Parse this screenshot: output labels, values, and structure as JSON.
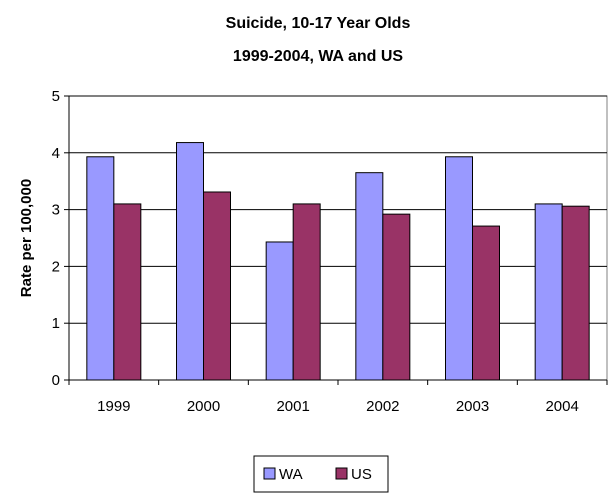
{
  "chart_data": {
    "type": "bar",
    "title_lines": [
      "Suicide, 10-17 Year Olds",
      "1999-2004, WA and US"
    ],
    "xlabel": "",
    "ylabel": "Rate per 100,000",
    "categories": [
      "1999",
      "2000",
      "2001",
      "2002",
      "2003",
      "2004"
    ],
    "series": [
      {
        "name": "WA",
        "values": [
          3.93,
          4.18,
          2.43,
          3.65,
          3.93,
          3.1
        ],
        "color": "#9999ff"
      },
      {
        "name": "US",
        "values": [
          3.1,
          3.31,
          3.1,
          2.92,
          2.71,
          3.06
        ],
        "color": "#993366"
      }
    ],
    "ylim": [
      0,
      5
    ],
    "yticks": [
      "0",
      "1",
      "2",
      "3",
      "4",
      "5"
    ],
    "grid": true,
    "legend_position": "bottom"
  }
}
